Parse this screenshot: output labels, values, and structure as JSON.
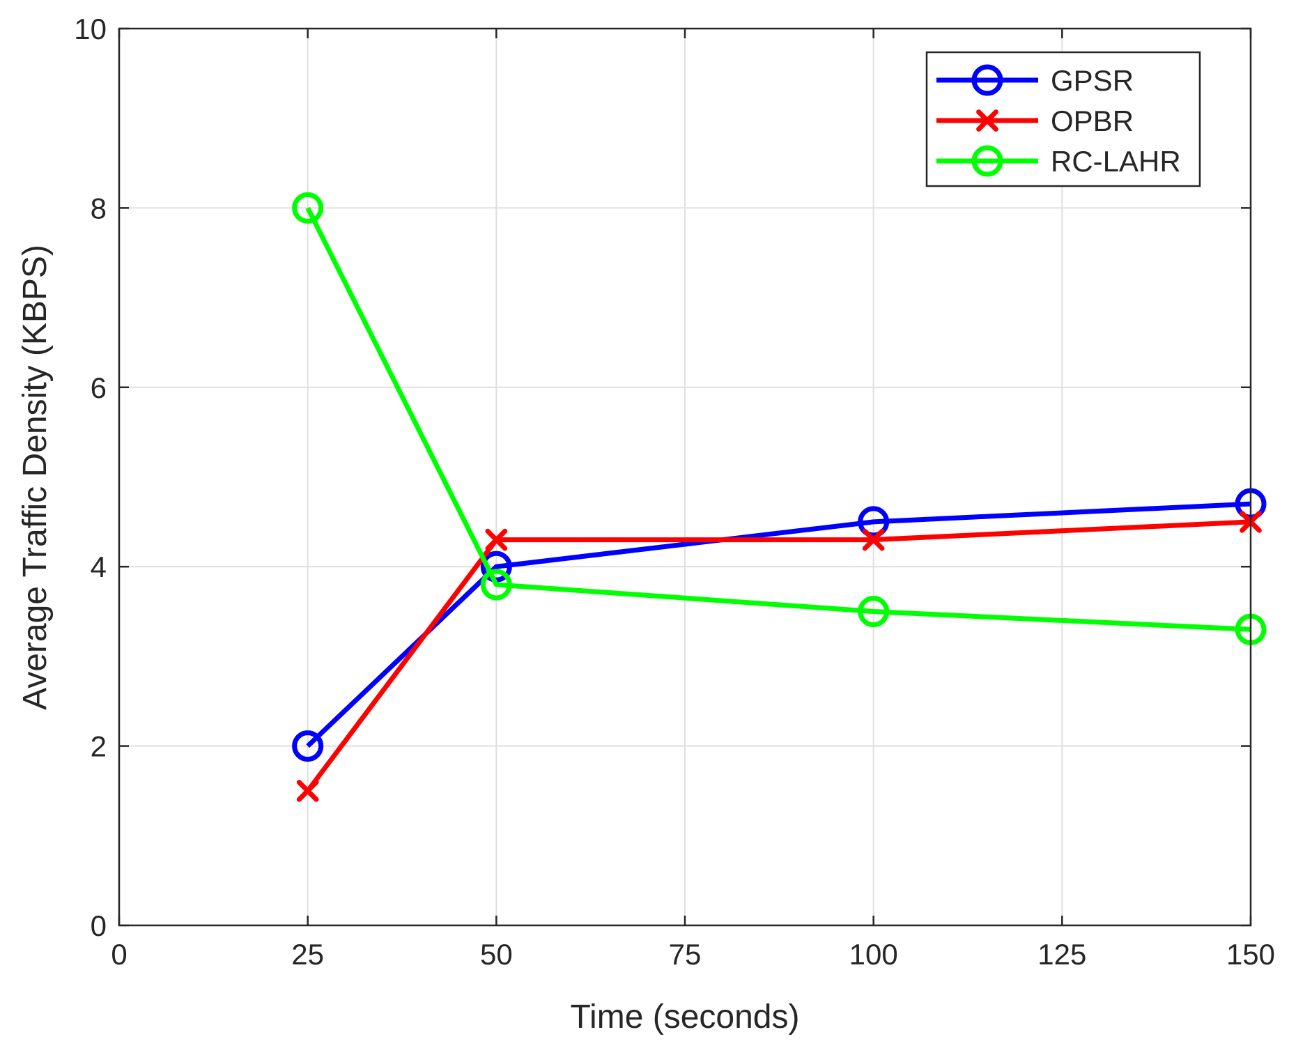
{
  "chart_data": {
    "type": "line",
    "title": "",
    "xlabel": "Time (seconds)",
    "ylabel": "Average Traffic Density (KBPS)",
    "xlim": [
      0,
      150
    ],
    "ylim": [
      0,
      10
    ],
    "xticks": [
      0,
      25,
      50,
      75,
      100,
      125,
      150
    ],
    "yticks": [
      0,
      2,
      4,
      6,
      8,
      10
    ],
    "grid": true,
    "legend_position": "top-right",
    "series": [
      {
        "name": "GPSR",
        "color": "#0000ff",
        "marker": "circle",
        "x": [
          25,
          50,
          100,
          150
        ],
        "y": [
          2.0,
          4.0,
          4.5,
          4.7
        ]
      },
      {
        "name": "OPBR",
        "color": "#ff0000",
        "marker": "x",
        "x": [
          25,
          50,
          100,
          150
        ],
        "y": [
          1.5,
          4.3,
          4.3,
          4.5
        ]
      },
      {
        "name": "RC-LAHR",
        "color": "#00ff00",
        "marker": "circle",
        "x": [
          25,
          50,
          100,
          150
        ],
        "y": [
          8.0,
          3.8,
          3.5,
          3.3
        ]
      }
    ]
  }
}
